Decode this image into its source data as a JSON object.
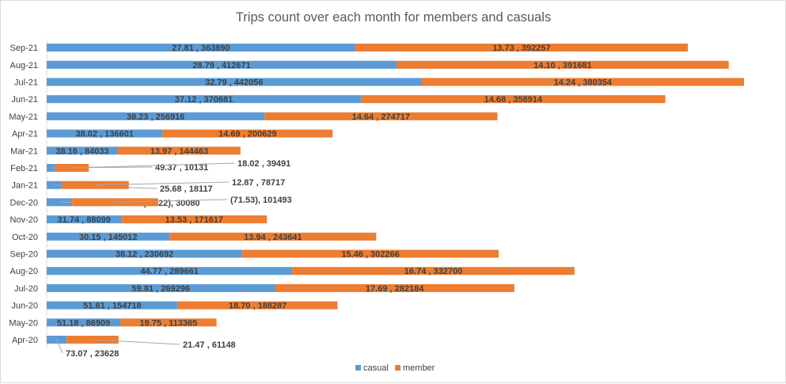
{
  "chart_data": {
    "type": "bar",
    "orientation": "horizontal",
    "stacked": true,
    "title": "Trips count over each month for members and casuals",
    "xlabel": "",
    "ylabel": "",
    "categories": [
      "Apr-20",
      "May-20",
      "Jun-20",
      "Jul-20",
      "Aug-20",
      "Sep-20",
      "Oct-20",
      "Nov-20",
      "Dec-20",
      "Jan-21",
      "Feb-21",
      "Mar-21",
      "Apr-21",
      "May-21",
      "Jun-21",
      "Jul-21",
      "Aug-21",
      "Sep-21"
    ],
    "series": [
      {
        "name": "casual",
        "color": "#5b9bd5",
        "values": [
          23628,
          86909,
          154718,
          269296,
          289661,
          230692,
          145012,
          88099,
          30080,
          18117,
          10131,
          84033,
          136601,
          256916,
          370681,
          442056,
          412671,
          363890
        ],
        "data_labels": [
          "73.07 , 23628",
          "51.18 , 86909",
          "51.61 , 154718",
          "59.81 , 269296",
          "44.77 , 289661",
          "38.12 , 230692",
          "30.15 , 145012",
          "31.74 , 88099",
          "(48.22), 30080",
          "25.68 , 18117",
          "49.37 , 10131",
          "38.16 , 84033",
          "38.02 , 136601",
          "38.23 , 256916",
          "37.12 , 370681",
          "32.79 , 442056",
          "28.79 , 412671",
          "27.81 , 363890"
        ]
      },
      {
        "name": "member",
        "color": "#ed7d31",
        "values": [
          61148,
          113365,
          188287,
          282184,
          332700,
          302266,
          243641,
          171617,
          101493,
          78717,
          39491,
          144463,
          200629,
          274717,
          358914,
          380354,
          391681,
          392257
        ],
        "data_labels": [
          "21.47 , 61148",
          "19.75 , 113365",
          "18.70 , 188287",
          "17.69 , 282184",
          "16.74 , 332700",
          "15.46 , 302266",
          "13.94 , 243641",
          "13.53 , 171617",
          "(71.53), 101493",
          "12.87 , 78717",
          "18.02 , 39491",
          "13.97 , 144463",
          "14.69 , 200629",
          "14.64 , 274717",
          "14.68 , 358914",
          "14.24 , 380354",
          "14.10 , 391681",
          "13.73 , 392257"
        ]
      }
    ],
    "legend": {
      "position": "bottom",
      "entries": [
        "casual",
        "member"
      ]
    },
    "grid": false
  }
}
